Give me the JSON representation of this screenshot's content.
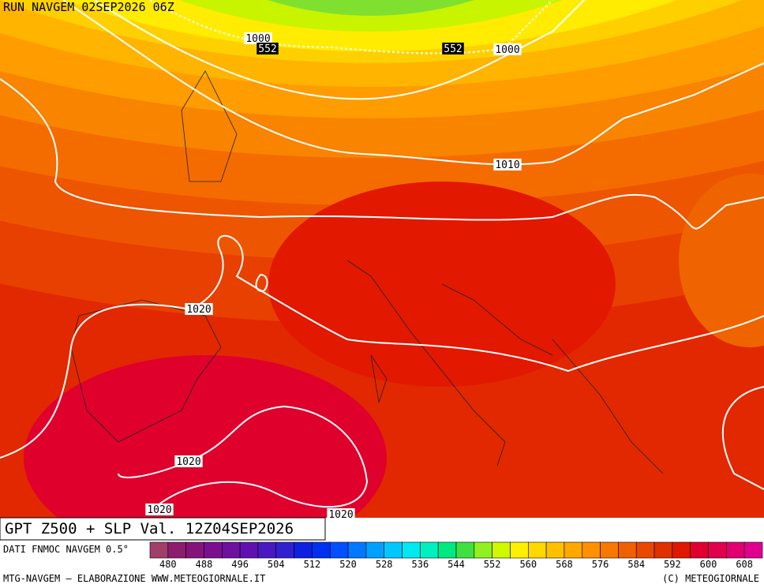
{
  "header": {
    "title": "RUN NAVGEM 02SEP2026 06Z"
  },
  "map": {
    "slp_labels": [
      "1000",
      "1000",
      "1010",
      "1020",
      "1020",
      "1020",
      "1020"
    ],
    "gpt_labels": [
      "552",
      "552"
    ]
  },
  "footer": {
    "title": "GPT Z500 + SLP Val. 12Z04SEP2026",
    "source": "DATI FNMOC NAVGEM 0.5°",
    "credit": "MTG-NAVGEM – ELABORAZIONE WWW.METEOGIORNALE.IT",
    "copyright": "(C) METEOGIORNALE"
  },
  "colorbar": {
    "lim": [
      476,
      612
    ],
    "ticks": [
      480,
      488,
      496,
      504,
      512,
      520,
      528,
      536,
      544,
      552,
      560,
      568,
      576,
      584,
      592,
      600,
      608
    ],
    "colors": [
      "#a0406a",
      "#8c1c6e",
      "#84147a",
      "#7a1090",
      "#6e10a0",
      "#6010b0",
      "#4818c0",
      "#3020d0",
      "#1020e0",
      "#0030f0",
      "#0050ff",
      "#0078ff",
      "#00a0ff",
      "#00c8ff",
      "#00e8f0",
      "#00f0c0",
      "#00e880",
      "#40e040",
      "#90f020",
      "#d0f800",
      "#fff000",
      "#ffd800",
      "#ffc000",
      "#ffa800",
      "#ff9000",
      "#f87800",
      "#f06000",
      "#e84800",
      "#e03000",
      "#e01800",
      "#e00030",
      "#e0004c",
      "#e00070",
      "#e00090"
    ]
  }
}
